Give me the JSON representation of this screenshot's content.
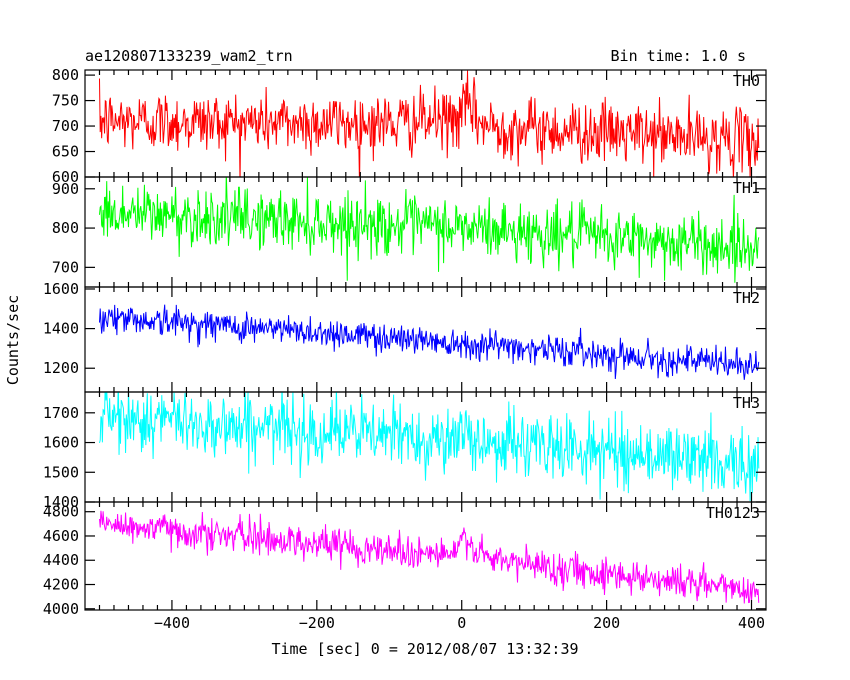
{
  "header": {
    "left_title": "ae120807133239_wam2_trn",
    "right_title": "Bin time: 1.0 s"
  },
  "axes": {
    "xlabel": "Time [sec] 0 = 2012/08/07 13:32:39",
    "ylabel": "Counts/sec"
  },
  "chart_data": {
    "type": "line",
    "x_range": [
      -520,
      420
    ],
    "x_ticks": [
      -400,
      -200,
      0,
      200,
      400
    ],
    "x_start": -500,
    "x_end": 410,
    "bin_time_s": 1.0,
    "series": [
      {
        "name": "TH0",
        "color": "#ff0000",
        "ylim": [
          600,
          810
        ],
        "y_ticks": [
          600,
          650,
          700,
          750,
          800
        ],
        "trend": [
          [
            -500,
            710
          ],
          [
            -100,
            705
          ],
          [
            -10,
            712
          ],
          [
            10,
            740
          ],
          [
            30,
            700
          ],
          [
            410,
            670
          ]
        ],
        "noise_sd": 30,
        "features": "burst near t=0 peaking ~810"
      },
      {
        "name": "TH1",
        "color": "#00ff00",
        "ylim": [
          650,
          930
        ],
        "y_ticks": [
          700,
          800,
          900
        ],
        "trend": [
          [
            -500,
            840
          ],
          [
            0,
            800
          ],
          [
            410,
            750
          ]
        ],
        "noise_sd": 38
      },
      {
        "name": "TH2",
        "color": "#0000ff",
        "ylim": [
          1080,
          1610
        ],
        "y_ticks": [
          1200,
          1400,
          1600
        ],
        "trend": [
          [
            -500,
            1460
          ],
          [
            0,
            1330
          ],
          [
            410,
            1210
          ]
        ],
        "noise_sd": 38
      },
      {
        "name": "TH3",
        "color": "#00ffff",
        "ylim": [
          1400,
          1770
        ],
        "y_ticks": [
          1400,
          1500,
          1600,
          1700
        ],
        "trend": [
          [
            -500,
            1685
          ],
          [
            0,
            1610
          ],
          [
            410,
            1530
          ]
        ],
        "noise_sd": 55
      },
      {
        "name": "TH0123",
        "color": "#ff00ff",
        "ylim": [
          3990,
          4880
        ],
        "y_ticks": [
          4000,
          4200,
          4400,
          4600,
          4800
        ],
        "trend": [
          [
            -500,
            4700
          ],
          [
            -10,
            4440
          ],
          [
            5,
            4600
          ],
          [
            30,
            4410
          ],
          [
            410,
            4150
          ]
        ],
        "noise_sd": 70
      }
    ]
  }
}
